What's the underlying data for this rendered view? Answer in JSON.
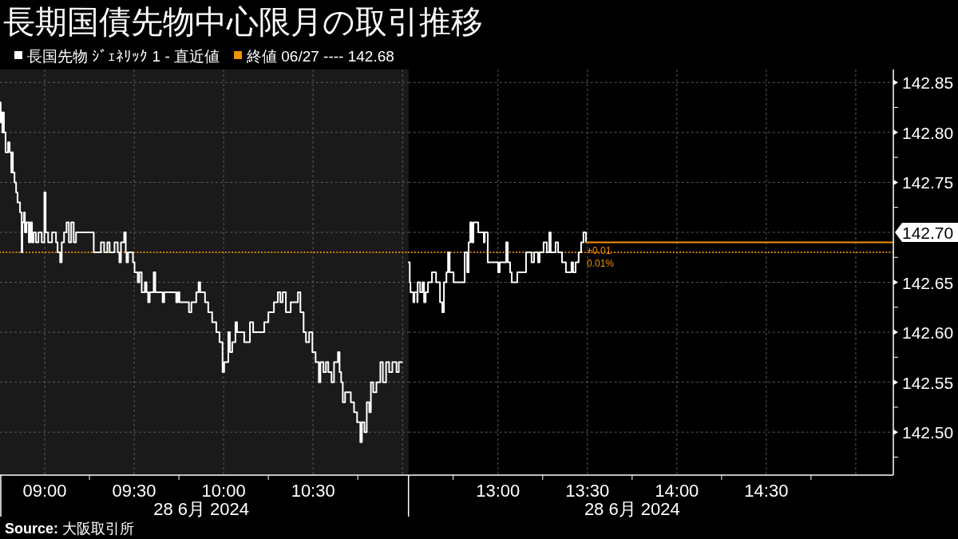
{
  "chart_data": [
    {
      "type": "step",
      "title": "長期国債先物中心限月の取引推移",
      "xlabel": "28 6月 2024",
      "legend": "top",
      "grid": true,
      "tick_labels": "x",
      "annotations": [
        "**Source:** 大阪取引所"
      ],
      "xlim": [
        8.75,
        11.0333
      ],
      "ylim": [
        142.457,
        142.863
      ],
      "xticks": [
        {
          "value": 9,
          "label": "09:00"
        },
        {
          "value": 9.5,
          "label": "09:30"
        },
        {
          "value": 10,
          "label": "10:00"
        },
        {
          "value": 10.5,
          "label": "10:30"
        },
        {
          "value": 11,
          "label": null
        }
      ],
      "yticks": [
        142.5,
        142.55,
        142.6,
        142.65,
        142.7,
        142.75,
        142.8,
        142.85
      ],
      "bands": [
        {
          "axis": "x",
          "from": 8.75,
          "to": 11.0333,
          "color": "#1a1a1a"
        }
      ],
      "ref_lines": [
        {
          "axis": "y",
          "value": 142.68,
          "label": "終値 06/27 ---- 142.68",
          "color": "#f39200",
          "line_style": "dotted"
        }
      ],
      "x": [
        8.75,
        8.754,
        8.759,
        8.763,
        8.768,
        8.772,
        8.781,
        8.795,
        8.804,
        8.813,
        8.817,
        8.822,
        8.831,
        8.84,
        8.848,
        8.862,
        8.871,
        8.875,
        8.884,
        8.889,
        8.898,
        8.911,
        8.92,
        8.929,
        8.938,
        8.951,
        8.965,
        8.983,
        8.998,
        9.005,
        9.019,
        9.041,
        9.063,
        9.072,
        9.086,
        9.095,
        9.108,
        9.122,
        9.135,
        9.148,
        9.162,
        9.175,
        9.256,
        9.274,
        9.301,
        9.314,
        9.332,
        9.35,
        9.363,
        9.39,
        9.408,
        9.417,
        9.426,
        9.444,
        9.453,
        9.457,
        9.466,
        9.475,
        9.493,
        9.502,
        9.52,
        9.529,
        9.542,
        9.56,
        9.569,
        9.578,
        9.587,
        9.609,
        9.618,
        9.659,
        9.668,
        9.726,
        9.735,
        9.744,
        9.753,
        9.806,
        9.82,
        9.847,
        9.86,
        9.869,
        9.896,
        9.914,
        9.936,
        9.959,
        9.977,
        9.994,
        10.003,
        10.026,
        10.035,
        10.048,
        10.066,
        10.075,
        10.093,
        10.115,
        10.147,
        10.165,
        10.227,
        10.25,
        10.281,
        10.303,
        10.317,
        10.33,
        10.348,
        10.375,
        10.415,
        10.429,
        10.447,
        10.46,
        10.478,
        10.496,
        10.514,
        10.532,
        10.541,
        10.558,
        10.572,
        10.585,
        10.603,
        10.617,
        10.639,
        10.648,
        10.657,
        10.666,
        10.679,
        10.711,
        10.729,
        10.746,
        10.764,
        10.773,
        10.787,
        10.8,
        10.814,
        10.823,
        10.836,
        10.854,
        10.876,
        10.89,
        10.908,
        10.925,
        10.943,
        10.966,
        10.979,
        10.997
      ],
      "series": [
        {
          "name": "長国先物 ｼﾞｪﾈﾘｯｸ 1 - 直近値",
          "color": "#ffffff",
          "values": [
            142.83,
            142.81,
            142.82,
            142.8,
            142.82,
            142.8,
            142.78,
            142.79,
            142.78,
            142.76,
            142.78,
            142.76,
            142.75,
            142.74,
            142.73,
            142.72,
            142.68,
            142.71,
            142.72,
            142.7,
            142.71,
            142.69,
            142.71,
            142.69,
            142.7,
            142.69,
            142.7,
            142.69,
            142.74,
            142.7,
            142.69,
            142.7,
            142.69,
            142.68,
            142.67,
            142.69,
            142.7,
            142.71,
            142.69,
            142.71,
            142.69,
            142.7,
            142.7,
            142.68,
            142.68,
            142.69,
            142.68,
            142.69,
            142.68,
            142.69,
            142.68,
            142.67,
            142.69,
            142.7,
            142.68,
            142.67,
            142.68,
            142.68,
            142.67,
            142.66,
            142.65,
            142.66,
            142.64,
            142.65,
            142.64,
            142.63,
            142.64,
            142.66,
            142.64,
            142.63,
            142.64,
            142.64,
            142.63,
            142.64,
            142.63,
            142.62,
            142.63,
            142.64,
            142.65,
            142.64,
            142.63,
            142.62,
            142.61,
            142.6,
            142.59,
            142.56,
            142.57,
            142.6,
            142.58,
            142.59,
            142.61,
            142.6,
            142.6,
            142.59,
            142.61,
            142.6,
            142.61,
            142.62,
            142.63,
            142.64,
            142.63,
            142.64,
            142.62,
            142.63,
            142.64,
            142.62,
            142.6,
            142.59,
            142.6,
            142.58,
            142.57,
            142.55,
            142.57,
            142.56,
            142.57,
            142.56,
            142.55,
            142.57,
            142.58,
            142.56,
            142.55,
            142.53,
            142.54,
            142.53,
            142.52,
            142.51,
            142.49,
            142.51,
            142.5,
            142.53,
            142.52,
            142.55,
            142.54,
            142.55,
            142.57,
            142.55,
            142.57,
            142.56,
            142.57,
            142.56,
            142.57,
            142.57
          ]
        }
      ]
    },
    {
      "type": "step",
      "xlabel": "28 6月 2024",
      "grid": true,
      "annotations": [
        "+0.01",
        "0.01%"
      ],
      "xlim": [
        12.5,
        15.21
      ],
      "ylim": [
        142.457,
        142.863
      ],
      "xticks": [
        {
          "value": 13,
          "label": "13:00"
        },
        {
          "value": 13.5,
          "label": "13:30"
        },
        {
          "value": 14,
          "label": "14:00"
        },
        {
          "value": 14.5,
          "label": "14:30"
        },
        {
          "value": 15,
          "label": null
        }
      ],
      "yticks": [
        {
          "value": 142.5,
          "label": "142.50"
        },
        {
          "value": 142.55,
          "label": "142.55"
        },
        {
          "value": 142.6,
          "label": "142.60"
        },
        {
          "value": 142.65,
          "label": "142.65"
        },
        {
          "value": 142.7,
          "label": "142.70"
        },
        {
          "value": 142.75,
          "label": "142.75"
        },
        {
          "value": 142.8,
          "label": "142.80"
        },
        {
          "value": 142.85,
          "label": "142.85"
        }
      ],
      "ref_lines": [
        {
          "axis": "y",
          "value": 142.68,
          "color": "#f39200",
          "line_style": "dotted"
        }
      ],
      "x": [
        12.501,
        12.507,
        12.511,
        12.527,
        12.533,
        12.549,
        12.551,
        12.565,
        12.578,
        12.587,
        12.596,
        12.609,
        12.631,
        12.654,
        12.676,
        12.689,
        12.698,
        12.712,
        12.721,
        12.73,
        12.752,
        12.814,
        12.828,
        12.836,
        12.845,
        12.854,
        12.863,
        12.89,
        12.921,
        12.926,
        12.943,
        13.001,
        13.01,
        13.046,
        13.055,
        13.068,
        13.077,
        13.108,
        13.157,
        13.188,
        13.202,
        13.224,
        13.233,
        13.255,
        13.273,
        13.287,
        13.295,
        13.322,
        13.336,
        13.358,
        13.38,
        13.411,
        13.42,
        13.434,
        13.451,
        13.465,
        13.478,
        13.492
      ],
      "series": [
        {
          "color": "#ffffff",
          "values": [
            142.67,
            142.65,
            142.64,
            142.63,
            142.64,
            142.63,
            142.65,
            142.64,
            142.65,
            142.63,
            142.64,
            142.65,
            142.66,
            142.65,
            142.63,
            142.62,
            142.65,
            142.66,
            142.68,
            142.66,
            142.65,
            142.68,
            142.66,
            142.69,
            142.71,
            142.69,
            142.71,
            142.7,
            142.69,
            142.7,
            142.67,
            142.66,
            142.67,
            142.69,
            142.67,
            142.66,
            142.65,
            142.66,
            142.68,
            142.67,
            142.68,
            142.67,
            142.68,
            142.69,
            142.68,
            142.7,
            142.68,
            142.69,
            142.68,
            142.67,
            142.66,
            142.67,
            142.66,
            142.67,
            142.68,
            142.69,
            142.7,
            142.69
          ]
        },
        {
          "type": "line",
          "color": "#f39200",
          "x": [
            13.492,
            15.21
          ],
          "values": [
            142.69,
            142.69
          ]
        }
      ]
    }
  ]
}
